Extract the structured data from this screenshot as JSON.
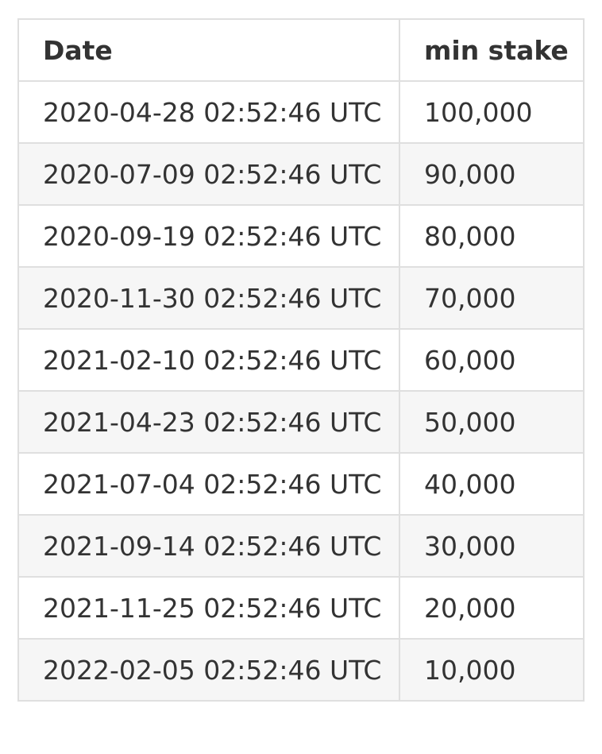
{
  "table": {
    "headers": [
      "Date",
      "min stake"
    ],
    "rows": [
      {
        "date": "2020-04-28 02:52:46 UTC",
        "min_stake": "100,000"
      },
      {
        "date": "2020-07-09 02:52:46 UTC",
        "min_stake": "90,000"
      },
      {
        "date": "2020-09-19 02:52:46 UTC",
        "min_stake": "80,000"
      },
      {
        "date": "2020-11-30 02:52:46 UTC",
        "min_stake": "70,000"
      },
      {
        "date": "2021-02-10 02:52:46 UTC",
        "min_stake": "60,000"
      },
      {
        "date": "2021-04-23 02:52:46 UTC",
        "min_stake": "50,000"
      },
      {
        "date": "2021-07-04 02:52:46 UTC",
        "min_stake": "40,000"
      },
      {
        "date": "2021-09-14 02:52:46 UTC",
        "min_stake": "30,000"
      },
      {
        "date": "2021-11-25 02:52:46 UTC",
        "min_stake": "20,000"
      },
      {
        "date": "2022-02-05 02:52:46 UTC",
        "min_stake": "10,000"
      }
    ]
  },
  "colors": {
    "text": "#333333",
    "border": "#dfdfdf",
    "row_stripe": "#f6f6f6",
    "background": "#ffffff"
  }
}
